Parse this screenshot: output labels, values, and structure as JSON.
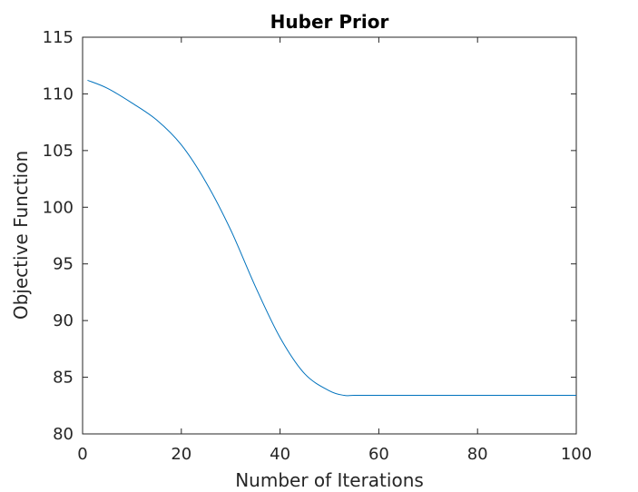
{
  "chart_data": {
    "type": "line",
    "title": "Huber Prior",
    "xlabel": "Number of Iterations",
    "ylabel": "Objective Function",
    "xlim": [
      0,
      100
    ],
    "ylim": [
      80,
      115
    ],
    "xticks": [
      0,
      20,
      40,
      60,
      80,
      100
    ],
    "yticks": [
      80,
      85,
      90,
      95,
      100,
      105,
      110,
      115
    ],
    "grid": false,
    "series": [
      {
        "color": "#0072bd",
        "x": [
          1,
          5,
          10,
          15,
          20,
          25,
          30,
          35,
          40,
          45,
          50,
          53,
          55,
          60,
          70,
          80,
          90,
          100
        ],
        "y": [
          111.2,
          110.5,
          109.2,
          107.7,
          105.5,
          102.2,
          98.0,
          93.0,
          88.5,
          85.3,
          83.8,
          83.4,
          83.4,
          83.4,
          83.4,
          83.4,
          83.4,
          83.4
        ]
      }
    ]
  }
}
